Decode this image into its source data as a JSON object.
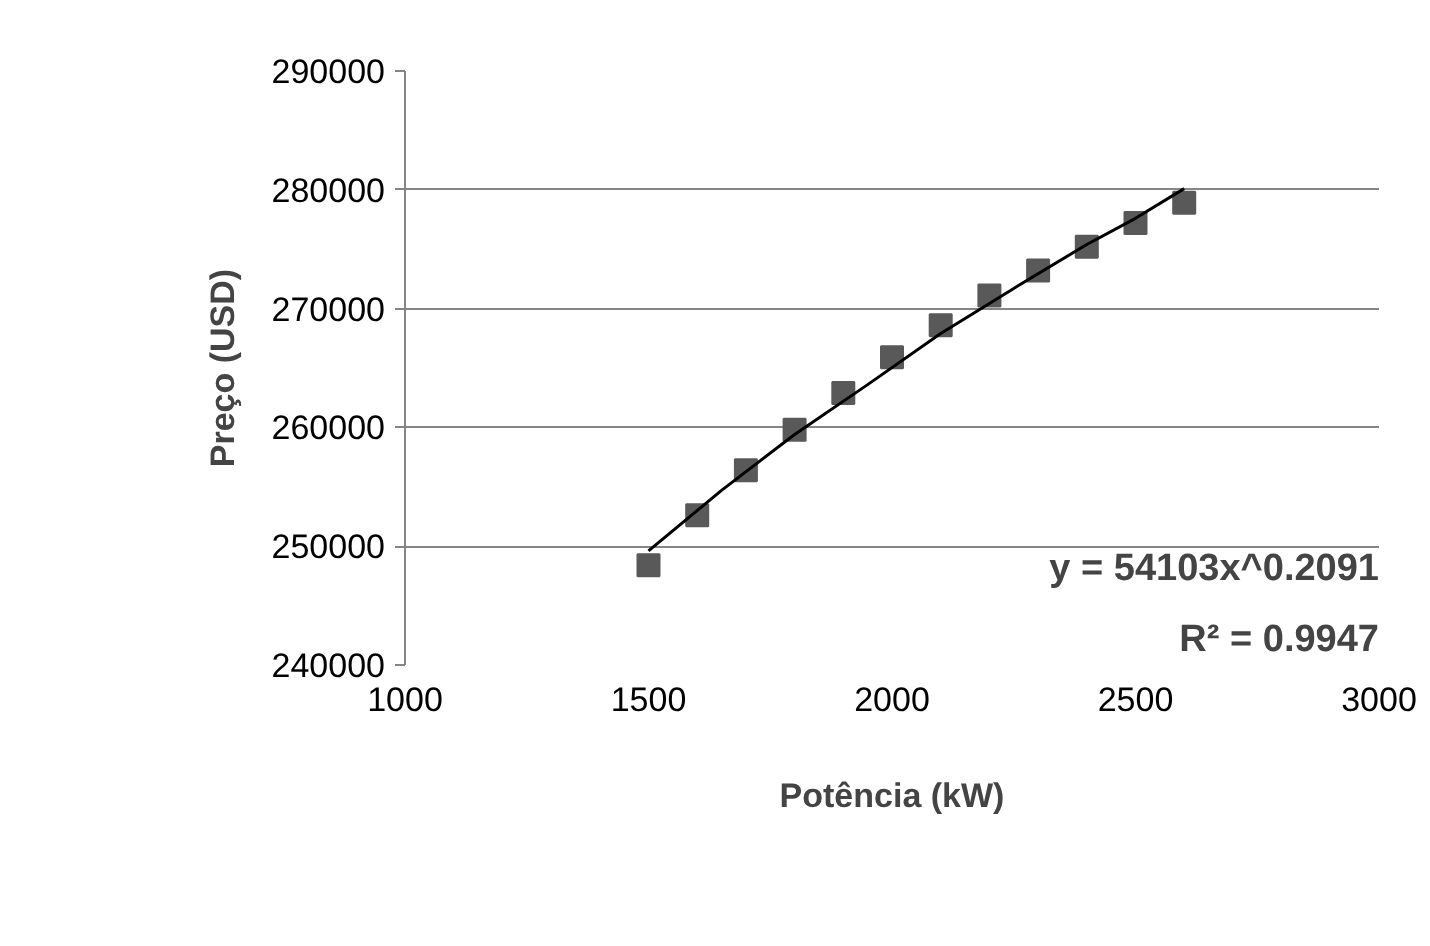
{
  "chart_data": {
    "type": "scatter",
    "xlabel": "Potência (kW)",
    "ylabel": "Preço (USD)",
    "xlim": [
      1000,
      3000
    ],
    "xticks": [
      1000,
      1500,
      2000,
      2500,
      3000
    ],
    "ylim": [
      240000,
      290000
    ],
    "yticks": [
      240000,
      250000,
      260000,
      270000,
      280000,
      290000
    ],
    "grid": "y",
    "series": [
      {
        "type": "scatter",
        "marker": "square",
        "color": "#595959",
        "x": [
          1500,
          1600,
          1700,
          1800,
          1900,
          2000,
          2100,
          2200,
          2300,
          2400,
          2500,
          2600
        ],
        "values": [
          248400,
          252600,
          256400,
          259800,
          262900,
          265900,
          268600,
          271100,
          273200,
          275200,
          277200,
          278900
        ]
      },
      {
        "type": "line",
        "color": "#000000",
        "x": [
          1500,
          1650,
          1800,
          1950,
          2100,
          2250,
          2400,
          2500,
          2600
        ],
        "values": [
          249600,
          254700,
          259400,
          263600,
          267900,
          271700,
          275400,
          277600,
          280100
        ]
      }
    ],
    "annotations": [
      "y = 54103x^0.2091",
      "R² = 0.9947"
    ]
  }
}
